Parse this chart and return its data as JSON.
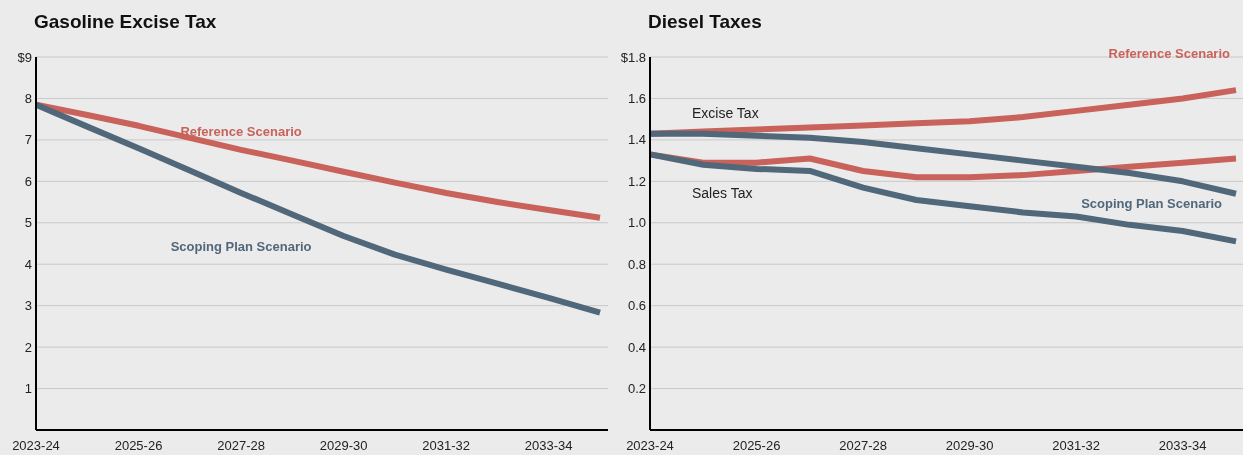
{
  "chart_data": [
    {
      "type": "line",
      "title": "Gasoline Excise Tax",
      "categories": [
        "2023-24",
        null,
        "2025-26",
        null,
        "2027-28",
        null,
        "2029-30",
        null,
        "2031-32",
        null,
        "2033-34",
        null
      ],
      "ylim": [
        0,
        9
      ],
      "yticks": [
        {
          "value": 1,
          "label": "1"
        },
        {
          "value": 2,
          "label": "2"
        },
        {
          "value": 3,
          "label": "3"
        },
        {
          "value": 4,
          "label": "4"
        },
        {
          "value": 5,
          "label": "5"
        },
        {
          "value": 6,
          "label": "6"
        },
        {
          "value": 7,
          "label": "7"
        },
        {
          "value": 8,
          "label": "8"
        },
        {
          "value": 9,
          "label": "$9"
        }
      ],
      "grid": "y",
      "marker": "none",
      "line_style": "solid",
      "series": [
        {
          "name": "Reference Scenario",
          "color": "#c8625a",
          "values": [
            7.85,
            7.6,
            7.34,
            7.05,
            6.76,
            6.5,
            6.23,
            5.97,
            5.72,
            5.5,
            5.31,
            5.12
          ]
        },
        {
          "name": "Scoping Plan Scenario",
          "color": "#51677a",
          "values": [
            7.85,
            7.32,
            6.8,
            6.26,
            5.72,
            5.2,
            4.68,
            4.23,
            3.87,
            3.53,
            3.19,
            2.83
          ]
        }
      ]
    },
    {
      "type": "line",
      "title": "Diesel Taxes",
      "categories": [
        "2023-24",
        null,
        "2025-26",
        null,
        "2027-28",
        null,
        "2029-30",
        null,
        "2031-32",
        null,
        "2033-34",
        null
      ],
      "ylim": [
        0,
        1.8
      ],
      "yticks": [
        {
          "value": 0.2,
          "label": "0.2"
        },
        {
          "value": 0.4,
          "label": "0.4"
        },
        {
          "value": 0.6,
          "label": "0.6"
        },
        {
          "value": 0.8,
          "label": "0.8"
        },
        {
          "value": 1,
          "label": "1.0"
        },
        {
          "value": 1.2,
          "label": "1.2"
        },
        {
          "value": 1.4,
          "label": "1.4"
        },
        {
          "value": 1.6,
          "label": "1.6"
        },
        {
          "value": 1.8,
          "label": "$1.8"
        }
      ],
      "grid": "y",
      "marker": "none",
      "line_style": "solid",
      "annotations": [
        "Excise Tax",
        "Sales Tax"
      ],
      "series": [
        {
          "name": "Reference Scenario",
          "color": "#c8625a",
          "values": [
            1.43,
            1.44,
            1.45,
            1.46,
            1.47,
            1.48,
            1.49,
            1.51,
            1.54,
            1.57,
            1.6,
            1.64
          ]
        },
        {
          "color": "#c8625a",
          "values": [
            1.33,
            1.29,
            1.29,
            1.31,
            1.25,
            1.22,
            1.22,
            1.23,
            1.25,
            1.27,
            1.29,
            1.31
          ]
        },
        {
          "name": "Scoping Plan Scenario",
          "color": "#51677a",
          "values": [
            1.43,
            1.43,
            1.42,
            1.41,
            1.39,
            1.36,
            1.33,
            1.3,
            1.27,
            1.24,
            1.2,
            1.14
          ]
        },
        {
          "color": "#51677a",
          "values": [
            1.33,
            1.28,
            1.26,
            1.25,
            1.17,
            1.11,
            1.08,
            1.05,
            1.03,
            0.99,
            0.96,
            0.91
          ]
        }
      ]
    }
  ]
}
